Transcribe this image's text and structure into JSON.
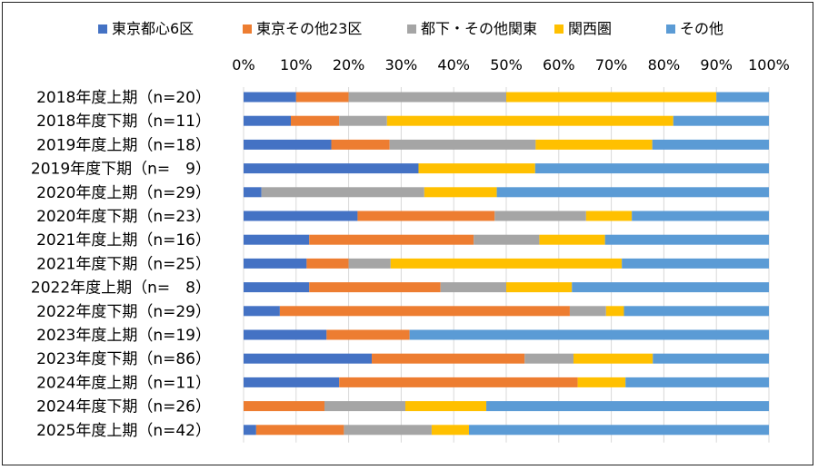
{
  "chart_data": {
    "type": "bar",
    "orientation": "horizontal",
    "stacked": "percent",
    "title": "",
    "xlabel": "",
    "ylabel": "",
    "xlim": [
      0,
      100
    ],
    "xticks": [
      "0%",
      "10%",
      "20%",
      "30%",
      "40%",
      "50%",
      "60%",
      "70%",
      "80%",
      "90%",
      "100%"
    ],
    "legend_position": "top",
    "categories": [
      "2018年度上期（n=20）",
      "2018年度下期（n=11）",
      "2019年度上期（n=18）",
      "2019年度下期（n=　9）",
      "2020年度上期（n=29）",
      "2020年度下期（n=23）",
      "2021年度上期（n=16）",
      "2021年度下期（n=25）",
      "2022年度上期（n=　8）",
      "2022年度下期（n=29）",
      "2023年度上期（n=19）",
      "2023年度下期（n=86）",
      "2024年度上期（n=11）",
      "2024年度下期（n=26）",
      "2025年度上期（n=42）"
    ],
    "series": [
      {
        "name": "東京都心6区",
        "color": "#4472C4",
        "values": [
          10,
          9,
          16.7,
          33.3,
          3.4,
          21.7,
          12.5,
          12,
          12.5,
          6.9,
          15.8,
          24.4,
          18.2,
          0,
          2.4
        ]
      },
      {
        "name": "東京その他23区",
        "color": "#ED7D31",
        "values": [
          10,
          9.2,
          11.1,
          0,
          0,
          26.1,
          31.3,
          8,
          25,
          55.2,
          15.8,
          29.1,
          45.4,
          15.4,
          16.7
        ]
      },
      {
        "name": "都下・その他関東",
        "color": "#A5A5A5",
        "values": [
          30,
          9.1,
          27.8,
          0,
          31,
          17.4,
          12.5,
          8,
          12.5,
          6.9,
          0,
          9.3,
          0,
          15.4,
          16.7
        ]
      },
      {
        "name": "関西圏",
        "color": "#FFC000",
        "values": [
          40,
          54.5,
          22.2,
          22.2,
          13.8,
          8.7,
          12.5,
          44,
          12.5,
          3.4,
          0,
          15.1,
          9.1,
          15.4,
          7.1
        ]
      },
      {
        "name": "その他",
        "color": "#5B9BD5",
        "values": [
          10,
          18.2,
          22.2,
          44.5,
          51.8,
          26.1,
          31.2,
          28,
          37.5,
          27.6,
          68.4,
          22.1,
          27.3,
          53.8,
          57.1
        ]
      }
    ]
  }
}
